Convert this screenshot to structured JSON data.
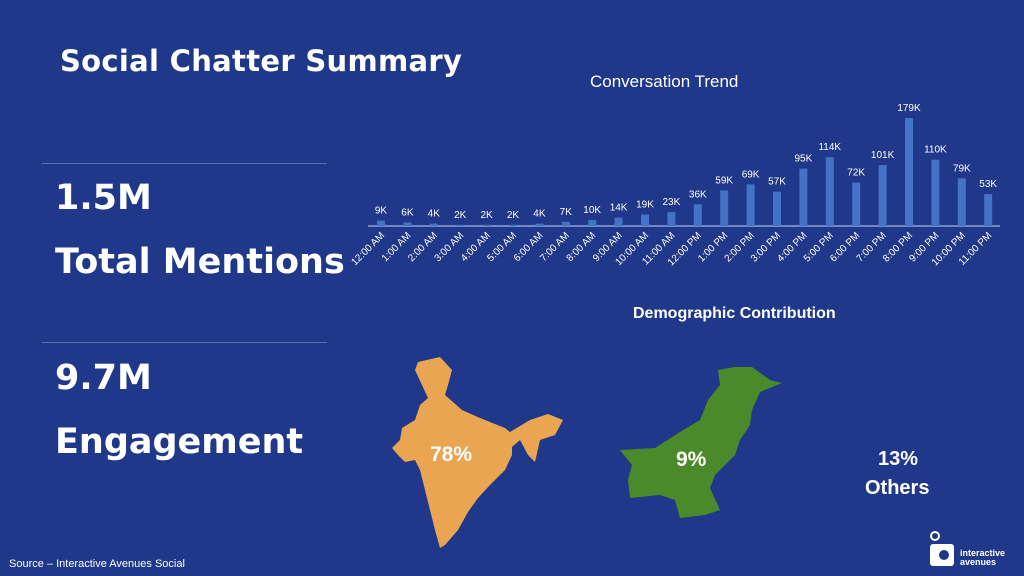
{
  "title": "Social Chatter Summary",
  "metrics": [
    {
      "value": "1.5M",
      "label": "Total Mentions"
    },
    {
      "value": "9.7M",
      "label": "Engagement"
    }
  ],
  "chart_data": {
    "type": "bar",
    "title": "Conversation Trend",
    "categories": [
      "12:00 AM",
      "1:00 AM",
      "2:00 AM",
      "3:00 AM",
      "4:00 AM",
      "5:00 AM",
      "6:00 AM",
      "7:00 AM",
      "8:00 AM",
      "9:00 AM",
      "10:00 AM",
      "11:00 AM",
      "12:00 PM",
      "1:00 PM",
      "2:00 PM",
      "3:00 PM",
      "4:00 PM",
      "5:00 PM",
      "6:00 PM",
      "7:00 PM",
      "8:00 PM",
      "9:00 PM",
      "10:00 PM",
      "11:00 PM"
    ],
    "values": [
      9,
      6,
      4,
      2,
      2,
      2,
      4,
      7,
      10,
      14,
      19,
      23,
      36,
      59,
      69,
      57,
      95,
      114,
      72,
      101,
      179,
      110,
      79,
      53
    ],
    "labels": [
      "9K",
      "6K",
      "4K",
      "2K",
      "2K",
      "2K",
      "4K",
      "7K",
      "10K",
      "14K",
      "19K",
      "23K",
      "36K",
      "59K",
      "69K",
      "57K",
      "95K",
      "114K",
      "72K",
      "101K",
      "179K",
      "110K",
      "79K",
      "53K"
    ],
    "unit": "K",
    "xlabel": "",
    "ylabel": "",
    "grid": false,
    "bar_color": "#4472c4"
  },
  "demographics": {
    "title": "Demographic Contribution",
    "items": [
      {
        "name": "India",
        "value": "78%",
        "color": "#e9a552"
      },
      {
        "name": "Pakistan",
        "value": "9%",
        "color": "#4a8a2a"
      },
      {
        "name": "Others",
        "value": "13%"
      }
    ]
  },
  "logo": {
    "line1": "interactive",
    "line2": "avenues"
  },
  "source": "Source – Interactive Avenues Social"
}
